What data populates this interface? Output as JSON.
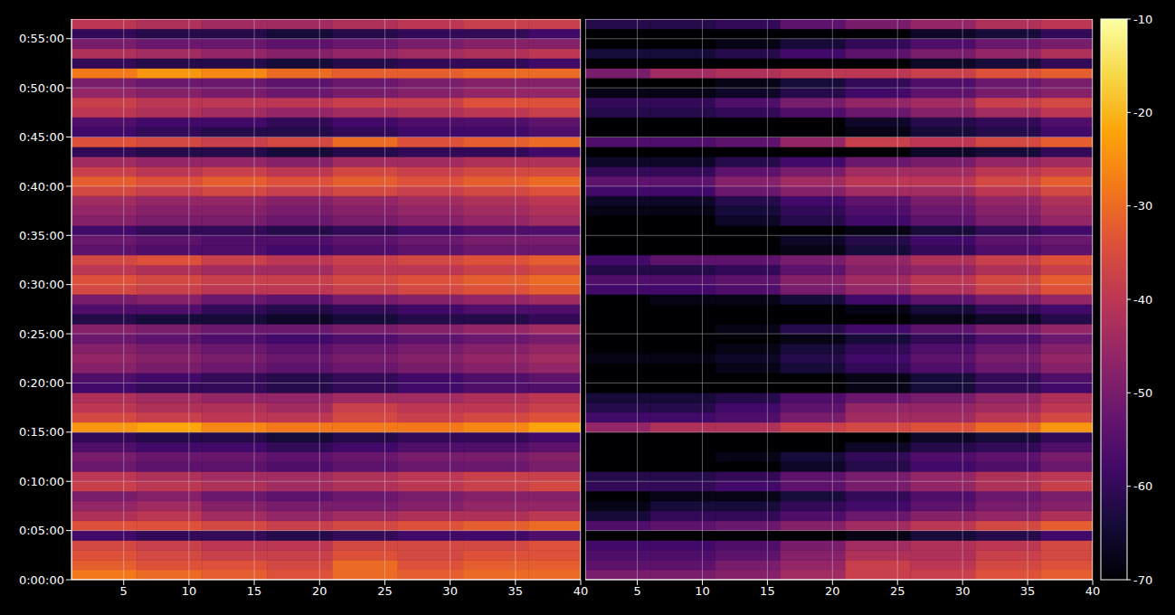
{
  "chart_data": [
    {
      "type": "heatmap",
      "grid": true,
      "xlim": [
        1,
        40
      ],
      "xticks": [
        5,
        10,
        15,
        20,
        25,
        30,
        35,
        40
      ],
      "ylim": [
        0,
        3420
      ],
      "yticks": [
        {
          "value": 0,
          "label": "0:00:00"
        },
        {
          "value": 300,
          "label": "0:05:00"
        },
        {
          "value": 600,
          "label": "0:10:00"
        },
        {
          "value": 900,
          "label": "0:15:00"
        },
        {
          "value": 1200,
          "label": "0:20:00"
        },
        {
          "value": 1500,
          "label": "0:25:00"
        },
        {
          "value": 1800,
          "label": "0:30:00"
        },
        {
          "value": 2100,
          "label": "0:35:00"
        },
        {
          "value": 2400,
          "label": "0:40:00"
        },
        {
          "value": 2700,
          "label": "0:45:00"
        },
        {
          "value": 3000,
          "label": "0:50:00"
        },
        {
          "value": 3300,
          "label": "0:55:00"
        }
      ],
      "x_edges": [
        1,
        6,
        11,
        16,
        21,
        26,
        31,
        36,
        40
      ],
      "y_edges": [
        0,
        60,
        120,
        180,
        240,
        300,
        360,
        420,
        480,
        540,
        600,
        660,
        720,
        780,
        840,
        900,
        960,
        1020,
        1080,
        1140,
        1200,
        1260,
        1320,
        1380,
        1440,
        1500,
        1560,
        1620,
        1680,
        1740,
        1800,
        1860,
        1920,
        1980,
        2040,
        2100,
        2160,
        2220,
        2280,
        2340,
        2400,
        2460,
        2520,
        2580,
        2640,
        2700,
        2760,
        2820,
        2880,
        2940,
        3000,
        3060,
        3120,
        3180,
        3240,
        3300,
        3360,
        3420
      ],
      "cells": [
        [
          -28,
          -30,
          -32,
          -34,
          -30,
          -32,
          -30,
          -30
        ],
        [
          -32,
          -34,
          -34,
          -36,
          -30,
          -34,
          -32,
          -32
        ],
        [
          -34,
          -36,
          -38,
          -38,
          -34,
          -36,
          -34,
          -34
        ],
        [
          -36,
          -38,
          -40,
          -40,
          -36,
          -36,
          -36,
          -34
        ],
        [
          -58,
          -60,
          -60,
          -62,
          -60,
          -58,
          -58,
          -56
        ],
        [
          -34,
          -34,
          -36,
          -38,
          -36,
          -34,
          -32,
          -30
        ],
        [
          -42,
          -40,
          -44,
          -46,
          -44,
          -42,
          -42,
          -40
        ],
        [
          -46,
          -44,
          -48,
          -50,
          -50,
          -48,
          -46,
          -46
        ],
        [
          -50,
          -48,
          -52,
          -54,
          -52,
          -50,
          -48,
          -48
        ],
        [
          -38,
          -40,
          -42,
          -44,
          -42,
          -40,
          -38,
          -36
        ],
        [
          -40,
          -42,
          -44,
          -44,
          -42,
          -40,
          -38,
          -38
        ],
        [
          -52,
          -54,
          -54,
          -56,
          -54,
          -52,
          -52,
          -50
        ],
        [
          -50,
          -52,
          -52,
          -54,
          -52,
          -50,
          -50,
          -48
        ],
        [
          -56,
          -58,
          -58,
          -60,
          -58,
          -56,
          -56,
          -54
        ],
        [
          -60,
          -62,
          -62,
          -64,
          -62,
          -60,
          -60,
          -58
        ],
        [
          -24,
          -22,
          -26,
          -28,
          -28,
          -28,
          -26,
          -22
        ],
        [
          -36,
          -38,
          -40,
          -40,
          -36,
          -38,
          -36,
          -34
        ],
        [
          -40,
          -42,
          -42,
          -44,
          -38,
          -40,
          -40,
          -38
        ],
        [
          -42,
          -44,
          -46,
          -46,
          -44,
          -44,
          -42,
          -40
        ],
        [
          -58,
          -60,
          -60,
          -62,
          -60,
          -58,
          -56,
          -56
        ],
        [
          -56,
          -58,
          -60,
          -62,
          -60,
          -58,
          -56,
          -54
        ],
        [
          -48,
          -50,
          -52,
          -54,
          -52,
          -50,
          -48,
          -46
        ],
        [
          -46,
          -48,
          -50,
          -52,
          -50,
          -48,
          -46,
          -44
        ],
        [
          -48,
          -50,
          -52,
          -54,
          -52,
          -50,
          -48,
          -46
        ],
        [
          -52,
          -54,
          -56,
          -58,
          -56,
          -54,
          -52,
          -50
        ],
        [
          -48,
          -50,
          -52,
          -52,
          -50,
          -48,
          -46,
          -44
        ],
        [
          -62,
          -64,
          -64,
          -66,
          -64,
          -62,
          -62,
          -60
        ],
        [
          -56,
          -56,
          -60,
          -62,
          -60,
          -58,
          -56,
          -56
        ],
        [
          -50,
          -48,
          -52,
          -54,
          -50,
          -48,
          -46,
          -44
        ],
        [
          -36,
          -38,
          -40,
          -40,
          -38,
          -36,
          -34,
          -32
        ],
        [
          -34,
          -36,
          -38,
          -38,
          -36,
          -34,
          -32,
          -30
        ],
        [
          -40,
          -42,
          -44,
          -44,
          -40,
          -40,
          -38,
          -36
        ],
        [
          -36,
          -34,
          -38,
          -40,
          -38,
          -36,
          -34,
          -32
        ],
        [
          -54,
          -56,
          -56,
          -58,
          -56,
          -54,
          -52,
          -52
        ],
        [
          -52,
          -54,
          -56,
          -56,
          -54,
          -52,
          -50,
          -50
        ],
        [
          -58,
          -60,
          -60,
          -62,
          -60,
          -58,
          -56,
          -56
        ],
        [
          -48,
          -50,
          -50,
          -52,
          -50,
          -48,
          -46,
          -44
        ],
        [
          -46,
          -48,
          -48,
          -50,
          -48,
          -46,
          -44,
          -42
        ],
        [
          -44,
          -46,
          -46,
          -48,
          -46,
          -44,
          -42,
          -40
        ],
        [
          -36,
          -38,
          -36,
          -38,
          -36,
          -38,
          -36,
          -34
        ],
        [
          -32,
          -34,
          -32,
          -34,
          -32,
          -34,
          -32,
          -30
        ],
        [
          -38,
          -40,
          -38,
          -40,
          -36,
          -38,
          -36,
          -36
        ],
        [
          -44,
          -46,
          -46,
          -48,
          -44,
          -44,
          -42,
          -42
        ],
        [
          -60,
          -62,
          -62,
          -64,
          -62,
          -60,
          -60,
          -58
        ],
        [
          -34,
          -36,
          -38,
          -36,
          -30,
          -34,
          -32,
          -30
        ],
        [
          -58,
          -60,
          -62,
          -62,
          -60,
          -58,
          -58,
          -56
        ],
        [
          -56,
          -58,
          -58,
          -60,
          -58,
          -56,
          -56,
          -54
        ],
        [
          -40,
          -42,
          -44,
          -46,
          -44,
          -42,
          -40,
          -38
        ],
        [
          -38,
          -40,
          -40,
          -40,
          -38,
          -38,
          -34,
          -34
        ],
        [
          -46,
          -48,
          -50,
          -52,
          -50,
          -48,
          -46,
          -46
        ],
        [
          -50,
          -52,
          -52,
          -54,
          -52,
          -50,
          -48,
          -48
        ],
        [
          -28,
          -24,
          -26,
          -30,
          -32,
          -32,
          -30,
          -30
        ],
        [
          -60,
          -62,
          -62,
          -64,
          -62,
          -60,
          -60,
          -58
        ],
        [
          -42,
          -44,
          -46,
          -48,
          -46,
          -44,
          -42,
          -40
        ],
        [
          -50,
          -52,
          -52,
          -54,
          -52,
          -50,
          -48,
          -48
        ],
        [
          -60,
          -62,
          -62,
          -64,
          -62,
          -60,
          -60,
          -58
        ],
        [
          -40,
          -42,
          -44,
          -44,
          -42,
          -40,
          -38,
          -38
        ]
      ]
    },
    {
      "type": "heatmap",
      "grid": true,
      "tick_labels": "x",
      "xlim": [
        1,
        40
      ],
      "xticks": [
        5,
        10,
        15,
        20,
        25,
        30,
        35,
        40
      ],
      "ylim": [
        0,
        3420
      ],
      "yticks": [
        0,
        300,
        600,
        900,
        1200,
        1500,
        1800,
        2100,
        2400,
        2700,
        3000,
        3300
      ],
      "x_edges": [
        1,
        6,
        11,
        16,
        21,
        26,
        31,
        36,
        40
      ],
      "y_edges": [
        0,
        60,
        120,
        180,
        240,
        300,
        360,
        420,
        480,
        540,
        600,
        660,
        720,
        780,
        840,
        900,
        960,
        1020,
        1080,
        1140,
        1200,
        1260,
        1320,
        1380,
        1440,
        1500,
        1560,
        1620,
        1680,
        1740,
        1800,
        1860,
        1920,
        1980,
        2040,
        2100,
        2160,
        2220,
        2280,
        2340,
        2400,
        2460,
        2520,
        2580,
        2640,
        2700,
        2760,
        2820,
        2880,
        2940,
        3000,
        3060,
        3120,
        3180,
        3240,
        3300,
        3360,
        3420
      ],
      "cells": [
        [
          -50,
          -50,
          -48,
          -44,
          -38,
          -38,
          -34,
          -32
        ],
        [
          -54,
          -54,
          -50,
          -46,
          -38,
          -40,
          -36,
          -34
        ],
        [
          -56,
          -56,
          -54,
          -48,
          -42,
          -42,
          -38,
          -36
        ],
        [
          -58,
          -58,
          -56,
          -50,
          -44,
          -42,
          -40,
          -36
        ],
        [
          -70,
          -70,
          -70,
          -70,
          -68,
          -64,
          -62,
          -58
        ],
        [
          -56,
          -54,
          -52,
          -48,
          -44,
          -40,
          -36,
          -32
        ],
        [
          -64,
          -60,
          -60,
          -56,
          -52,
          -48,
          -46,
          -42
        ],
        [
          -68,
          -64,
          -64,
          -60,
          -58,
          -54,
          -50,
          -48
        ],
        [
          -70,
          -68,
          -68,
          -64,
          -60,
          -56,
          -52,
          -50
        ],
        [
          -60,
          -60,
          -58,
          -54,
          -50,
          -46,
          -42,
          -38
        ],
        [
          -62,
          -62,
          -60,
          -54,
          -50,
          -46,
          -42,
          -40
        ],
        [
          -70,
          -70,
          -70,
          -66,
          -62,
          -58,
          -56,
          -52
        ],
        [
          -70,
          -70,
          -68,
          -64,
          -60,
          -56,
          -54,
          -50
        ],
        [
          -70,
          -70,
          -70,
          -70,
          -66,
          -62,
          -60,
          -56
        ],
        [
          -70,
          -70,
          -70,
          -70,
          -70,
          -66,
          -64,
          -60
        ],
        [
          -46,
          -42,
          -42,
          -38,
          -36,
          -34,
          -30,
          -24
        ],
        [
          -58,
          -58,
          -56,
          -50,
          -44,
          -44,
          -40,
          -36
        ],
        [
          -62,
          -62,
          -58,
          -54,
          -46,
          -46,
          -44,
          -40
        ],
        [
          -64,
          -64,
          -62,
          -56,
          -52,
          -50,
          -46,
          -42
        ],
        [
          -70,
          -70,
          -70,
          -70,
          -68,
          -64,
          -60,
          -58
        ],
        [
          -70,
          -70,
          -70,
          -70,
          -68,
          -64,
          -60,
          -56
        ],
        [
          -70,
          -70,
          -68,
          -64,
          -60,
          -56,
          -52,
          -48
        ],
        [
          -68,
          -68,
          -66,
          -62,
          -58,
          -54,
          -50,
          -46
        ],
        [
          -70,
          -70,
          -68,
          -64,
          -60,
          -56,
          -52,
          -48
        ],
        [
          -70,
          -70,
          -70,
          -68,
          -64,
          -60,
          -56,
          -52
        ],
        [
          -70,
          -70,
          -68,
          -62,
          -58,
          -54,
          -50,
          -46
        ],
        [
          -70,
          -70,
          -70,
          -70,
          -70,
          -68,
          -66,
          -62
        ],
        [
          -70,
          -70,
          -70,
          -70,
          -68,
          -64,
          -60,
          -58
        ],
        [
          -70,
          -68,
          -68,
          -64,
          -58,
          -54,
          -50,
          -46
        ],
        [
          -58,
          -58,
          -56,
          -50,
          -46,
          -42,
          -38,
          -34
        ],
        [
          -56,
          -56,
          -54,
          -48,
          -44,
          -40,
          -36,
          -32
        ],
        [
          -62,
          -62,
          -60,
          -54,
          -48,
          -46,
          -42,
          -38
        ],
        [
          -58,
          -54,
          -54,
          -50,
          -46,
          -42,
          -38,
          -34
        ],
        [
          -70,
          -70,
          -70,
          -68,
          -64,
          -60,
          -56,
          -54
        ],
        [
          -70,
          -70,
          -70,
          -66,
          -62,
          -58,
          -54,
          -52
        ],
        [
          -70,
          -70,
          -70,
          -70,
          -68,
          -64,
          -60,
          -58
        ],
        [
          -70,
          -70,
          -66,
          -62,
          -58,
          -54,
          -50,
          -46
        ],
        [
          -68,
          -68,
          -64,
          -60,
          -56,
          -52,
          -48,
          -44
        ],
        [
          -66,
          -66,
          -62,
          -58,
          -54,
          -50,
          -46,
          -42
        ],
        [
          -58,
          -58,
          -52,
          -48,
          -44,
          -44,
          -40,
          -36
        ],
        [
          -54,
          -54,
          -48,
          -44,
          -40,
          -40,
          -36,
          -32
        ],
        [
          -60,
          -60,
          -54,
          -50,
          -44,
          -44,
          -40,
          -38
        ],
        [
          -66,
          -66,
          -62,
          -58,
          -52,
          -50,
          -46,
          -44
        ],
        [
          -70,
          -70,
          -70,
          -70,
          -70,
          -66,
          -64,
          -60
        ],
        [
          -56,
          -56,
          -54,
          -46,
          -38,
          -40,
          -36,
          -32
        ],
        [
          -70,
          -70,
          -70,
          -70,
          -68,
          -64,
          -62,
          -58
        ],
        [
          -70,
          -70,
          -70,
          -70,
          -66,
          -62,
          -60,
          -56
        ],
        [
          -62,
          -62,
          -60,
          -56,
          -52,
          -48,
          -44,
          -40
        ],
        [
          -60,
          -60,
          -56,
          -50,
          -46,
          -44,
          -38,
          -36
        ],
        [
          -68,
          -68,
          -66,
          -62,
          -58,
          -54,
          -50,
          -48
        ],
        [
          -70,
          -70,
          -68,
          -64,
          -60,
          -56,
          -52,
          -50
        ],
        [
          -50,
          -44,
          -42,
          -40,
          -40,
          -38,
          -34,
          -32
        ],
        [
          -70,
          -70,
          -70,
          -70,
          -70,
          -66,
          -64,
          -60
        ],
        [
          -64,
          -64,
          -62,
          -58,
          -54,
          -50,
          -46,
          -42
        ],
        [
          -70,
          -70,
          -68,
          -64,
          -60,
          -56,
          -52,
          -50
        ],
        [
          -70,
          -70,
          -70,
          -70,
          -70,
          -66,
          -64,
          -60
        ],
        [
          -62,
          -62,
          -60,
          -54,
          -50,
          -46,
          -42,
          -40
        ]
      ]
    }
  ],
  "colorbar": {
    "range": [
      -70,
      -10
    ],
    "ticks": [
      -70,
      -60,
      -50,
      -40,
      -30,
      -20,
      -10
    ]
  }
}
